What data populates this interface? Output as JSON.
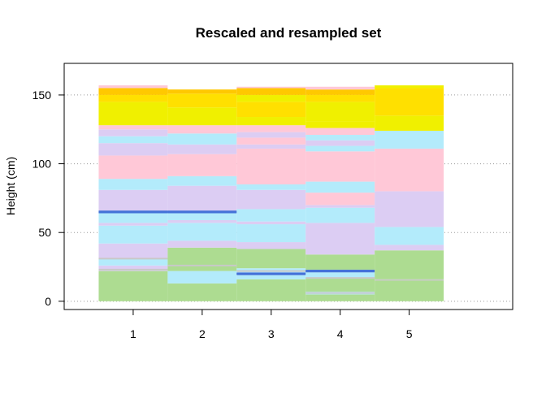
{
  "chart_data": {
    "type": "bar",
    "title": "Rescaled and resampled set",
    "xlabel": "",
    "ylabel": "Height (cm)",
    "categories": [
      "1",
      "2",
      "3",
      "4",
      "5"
    ],
    "xlim": [
      0,
      6.5
    ],
    "ylim": [
      -6,
      173
    ],
    "yticks": [
      0,
      50,
      100,
      150
    ],
    "grid": "horizontal dotted",
    "colors": {
      "green": "#ADDC91",
      "cyan": "#B3EBFB",
      "lavender": "#DCCDF3",
      "pink": "#FFC8D7",
      "yellow": "#F0F000",
      "gold": "#FFE000",
      "orange": "#FFC800",
      "blue": "#4472D8",
      "gray": "#C8C8C8"
    },
    "columns": [
      {
        "x": "1",
        "segments": [
          {
            "from": 0,
            "to": 22,
            "color": "green"
          },
          {
            "from": 22,
            "to": 26,
            "color": "lavender"
          },
          {
            "from": 26,
            "to": 31,
            "color": "cyan"
          },
          {
            "from": 31,
            "to": 42,
            "color": "lavender"
          },
          {
            "from": 42,
            "to": 55,
            "color": "cyan"
          },
          {
            "from": 55,
            "to": 57,
            "color": "lavender"
          },
          {
            "from": 57,
            "to": 64,
            "color": "cyan"
          },
          {
            "from": 64,
            "to": 66,
            "color": "blue"
          },
          {
            "from": 66,
            "to": 81,
            "color": "lavender"
          },
          {
            "from": 81,
            "to": 89,
            "color": "cyan"
          },
          {
            "from": 89,
            "to": 106,
            "color": "pink"
          },
          {
            "from": 106,
            "to": 115,
            "color": "lavender"
          },
          {
            "from": 115,
            "to": 120,
            "color": "cyan"
          },
          {
            "from": 120,
            "to": 125,
            "color": "lavender"
          },
          {
            "from": 125,
            "to": 128,
            "color": "pink"
          },
          {
            "from": 128,
            "to": 145,
            "color": "yellow"
          },
          {
            "from": 145,
            "to": 150,
            "color": "gold"
          },
          {
            "from": 150,
            "to": 155,
            "color": "orange"
          },
          {
            "from": 155,
            "to": 157,
            "color": "pink"
          }
        ],
        "thin_lines": [
          {
            "y": 23,
            "color": "gray"
          },
          {
            "y": 31,
            "color": "gray"
          },
          {
            "y": 65,
            "color": "blue"
          }
        ]
      },
      {
        "x": "2",
        "segments": [
          {
            "from": 0,
            "to": 13,
            "color": "green"
          },
          {
            "from": 13,
            "to": 22,
            "color": "cyan"
          },
          {
            "from": 22,
            "to": 26,
            "color": "green"
          },
          {
            "from": 26,
            "to": 39,
            "color": "green"
          },
          {
            "from": 39,
            "to": 44,
            "color": "lavender"
          },
          {
            "from": 44,
            "to": 57,
            "color": "cyan"
          },
          {
            "from": 57,
            "to": 59,
            "color": "lavender"
          },
          {
            "from": 59,
            "to": 64,
            "color": "cyan"
          },
          {
            "from": 64,
            "to": 66,
            "color": "blue"
          },
          {
            "from": 66,
            "to": 84,
            "color": "lavender"
          },
          {
            "from": 84,
            "to": 91,
            "color": "cyan"
          },
          {
            "from": 91,
            "to": 107,
            "color": "pink"
          },
          {
            "from": 107,
            "to": 114,
            "color": "lavender"
          },
          {
            "from": 114,
            "to": 122,
            "color": "cyan"
          },
          {
            "from": 122,
            "to": 128,
            "color": "pink"
          },
          {
            "from": 128,
            "to": 141,
            "color": "yellow"
          },
          {
            "from": 141,
            "to": 151,
            "color": "gold"
          },
          {
            "from": 151,
            "to": 154,
            "color": "orange"
          }
        ],
        "thin_lines": [
          {
            "y": 26,
            "color": "gray"
          },
          {
            "y": 65,
            "color": "blue"
          }
        ]
      },
      {
        "x": "3",
        "segments": [
          {
            "from": 0,
            "to": 16,
            "color": "green"
          },
          {
            "from": 16,
            "to": 19,
            "color": "cyan"
          },
          {
            "from": 19,
            "to": 21,
            "color": "blue"
          },
          {
            "from": 21,
            "to": 24,
            "color": "cyan"
          },
          {
            "from": 24,
            "to": 38,
            "color": "green"
          },
          {
            "from": 38,
            "to": 43,
            "color": "lavender"
          },
          {
            "from": 43,
            "to": 56,
            "color": "cyan"
          },
          {
            "from": 56,
            "to": 58,
            "color": "lavender"
          },
          {
            "from": 58,
            "to": 67,
            "color": "cyan"
          },
          {
            "from": 67,
            "to": 81,
            "color": "lavender"
          },
          {
            "from": 81,
            "to": 85,
            "color": "cyan"
          },
          {
            "from": 85,
            "to": 111,
            "color": "pink"
          },
          {
            "from": 111,
            "to": 114,
            "color": "lavender"
          },
          {
            "from": 114,
            "to": 119,
            "color": "pink"
          },
          {
            "from": 119,
            "to": 123,
            "color": "lavender"
          },
          {
            "from": 123,
            "to": 128,
            "color": "pink"
          },
          {
            "from": 128,
            "to": 134,
            "color": "yellow"
          },
          {
            "from": 134,
            "to": 145,
            "color": "gold"
          },
          {
            "from": 145,
            "to": 150,
            "color": "yellow"
          },
          {
            "from": 150,
            "to": 155,
            "color": "orange"
          },
          {
            "from": 155,
            "to": 156,
            "color": "pink"
          }
        ],
        "thin_lines": [
          {
            "y": 20,
            "color": "blue"
          },
          {
            "y": 22,
            "color": "gray"
          }
        ]
      },
      {
        "x": "4",
        "segments": [
          {
            "from": 0,
            "to": 5,
            "color": "green"
          },
          {
            "from": 5,
            "to": 7,
            "color": "cyan"
          },
          {
            "from": 7,
            "to": 17,
            "color": "green"
          },
          {
            "from": 17,
            "to": 21,
            "color": "cyan"
          },
          {
            "from": 21,
            "to": 23,
            "color": "blue"
          },
          {
            "from": 23,
            "to": 34,
            "color": "green"
          },
          {
            "from": 34,
            "to": 57,
            "color": "lavender"
          },
          {
            "from": 57,
            "to": 68,
            "color": "cyan"
          },
          {
            "from": 68,
            "to": 70,
            "color": "lavender"
          },
          {
            "from": 70,
            "to": 79,
            "color": "pink"
          },
          {
            "from": 79,
            "to": 87,
            "color": "cyan"
          },
          {
            "from": 87,
            "to": 109,
            "color": "pink"
          },
          {
            "from": 109,
            "to": 113,
            "color": "cyan"
          },
          {
            "from": 113,
            "to": 117,
            "color": "lavender"
          },
          {
            "from": 117,
            "to": 121,
            "color": "cyan"
          },
          {
            "from": 121,
            "to": 126,
            "color": "pink"
          },
          {
            "from": 126,
            "to": 131,
            "color": "yellow"
          },
          {
            "from": 131,
            "to": 145,
            "color": "yellow"
          },
          {
            "from": 145,
            "to": 150,
            "color": "gold"
          },
          {
            "from": 150,
            "to": 154,
            "color": "orange"
          },
          {
            "from": 154,
            "to": 156,
            "color": "pink"
          }
        ],
        "thin_lines": [
          {
            "y": 6,
            "color": "gray"
          },
          {
            "y": 22,
            "color": "blue"
          },
          {
            "y": 17,
            "color": "gray"
          }
        ]
      },
      {
        "x": "5",
        "segments": [
          {
            "from": 0,
            "to": 15,
            "color": "green"
          },
          {
            "from": 15,
            "to": 16,
            "color": "gray"
          },
          {
            "from": 16,
            "to": 37,
            "color": "green"
          },
          {
            "from": 37,
            "to": 41,
            "color": "lavender"
          },
          {
            "from": 41,
            "to": 54,
            "color": "cyan"
          },
          {
            "from": 54,
            "to": 80,
            "color": "lavender"
          },
          {
            "from": 80,
            "to": 111,
            "color": "pink"
          },
          {
            "from": 111,
            "to": 124,
            "color": "cyan"
          },
          {
            "from": 124,
            "to": 135,
            "color": "yellow"
          },
          {
            "from": 135,
            "to": 155,
            "color": "gold"
          },
          {
            "from": 155,
            "to": 157,
            "color": "yellow"
          }
        ],
        "thin_lines": []
      }
    ]
  }
}
